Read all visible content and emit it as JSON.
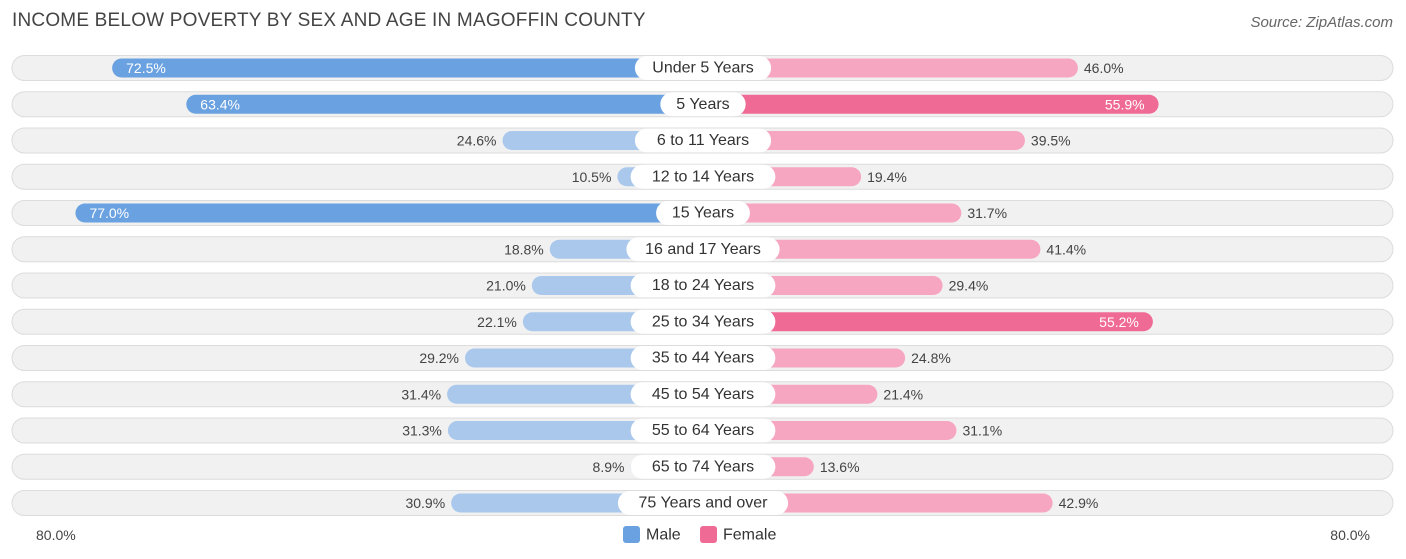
{
  "title": "INCOME BELOW POVERTY BY SEX AND AGE IN MAGOFFIN COUNTY",
  "source": "Source: ZipAtlas.com",
  "colors": {
    "male_strong": "#6aa1e0",
    "male_light": "#a9c8ec",
    "female_strong": "#f06a96",
    "female_light": "#f6a6c1"
  },
  "chart_data": {
    "type": "bar",
    "orientation": "horizontal-diverging",
    "title": "INCOME BELOW POVERTY BY SEX AND AGE IN MAGOFFIN COUNTY",
    "categories": [
      "Under 5 Years",
      "5 Years",
      "6 to 11 Years",
      "12 to 14 Years",
      "15 Years",
      "16 and 17 Years",
      "18 to 24 Years",
      "25 to 34 Years",
      "35 to 44 Years",
      "45 to 54 Years",
      "55 to 64 Years",
      "65 to 74 Years",
      "75 Years and over"
    ],
    "series": [
      {
        "name": "Male",
        "values": [
          72.5,
          63.4,
          24.6,
          10.5,
          77.0,
          18.8,
          21.0,
          22.1,
          29.2,
          31.4,
          31.3,
          8.9,
          30.9
        ],
        "labels": [
          "72.5%",
          "63.4%",
          "24.6%",
          "10.5%",
          "77.0%",
          "18.8%",
          "21.0%",
          "22.1%",
          "29.2%",
          "31.4%",
          "31.3%",
          "8.9%",
          "30.9%"
        ]
      },
      {
        "name": "Female",
        "values": [
          46.0,
          55.9,
          39.5,
          19.4,
          31.7,
          41.4,
          29.4,
          55.2,
          24.8,
          21.4,
          31.1,
          13.6,
          42.9
        ],
        "labels": [
          "46.0%",
          "55.9%",
          "39.5%",
          "19.4%",
          "31.7%",
          "41.4%",
          "29.4%",
          "55.2%",
          "24.8%",
          "21.4%",
          "31.1%",
          "13.6%",
          "42.9%"
        ]
      }
    ],
    "xlim": [
      -80,
      80
    ],
    "axis_left_label": "80.0%",
    "axis_right_label": "80.0%",
    "legend": [
      "Male",
      "Female"
    ],
    "legend_position": "bottom-center"
  }
}
